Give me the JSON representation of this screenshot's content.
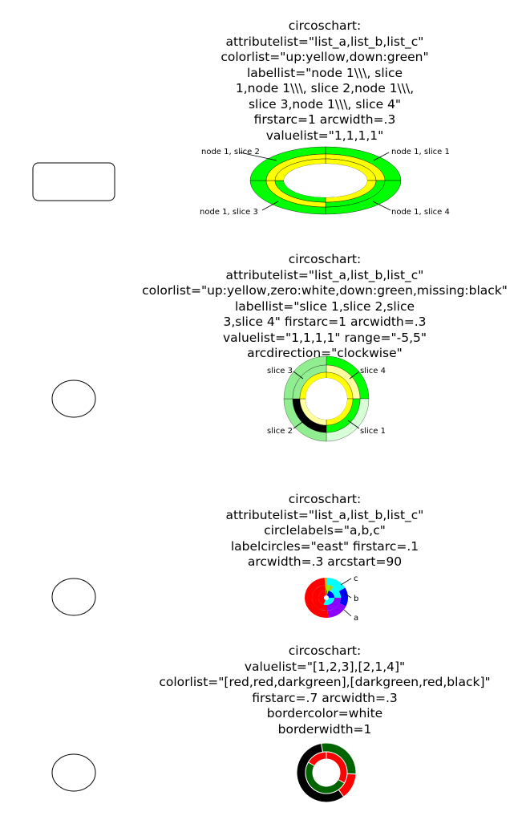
{
  "captions": [
    [
      "circoschart:",
      "attributelist=\"list_a,list_b,list_c\"",
      "colorlist=\"up:yellow,down:green\"",
      "labellist=\"node 1\\\\\\, slice",
      "1,node 1\\\\\\, slice 2,node 1\\\\\\,",
      "slice 3,node 1\\\\\\, slice 4\"",
      "firstarc=1 arcwidth=.3",
      "valuelist=\"1,1,1,1\""
    ],
    [
      "circoschart:",
      "attributelist=\"list_a,list_b,list_c\"",
      "colorlist=\"up:yellow,zero:white,down:green,missing:black\"",
      "labellist=\"slice 1,slice 2,slice",
      "3,slice 4\" firstarc=1 arcwidth=.3",
      "valuelist=\"1,1,1,1\" range=\"-5,5\"",
      "arcdirection=\"clockwise\""
    ],
    [
      "circoschart:",
      "attributelist=\"list_a,list_b,list_c\"",
      "circlelabels=\"a,b,c\"",
      "labelcircles=\"east\" firstarc=.1",
      "arcwidth=.3 arcstart=90"
    ],
    [
      "circoschart:",
      "valuelist=\"[1,2,3],[2,1,4]\"",
      "colorlist=\"[red,red,darkgreen],[darkgreen,red,black]\"",
      "firstarc=.7 arcwidth=.3",
      "bordercolor=white",
      "borderwidth=1"
    ]
  ],
  "chart1": {
    "labels": [
      "node 1, slice 2",
      "node 1, slice 1",
      "node 1, slice 3",
      "node 1, slice 4"
    ]
  },
  "chart2": {
    "labels": [
      "slice 3",
      "slice 4",
      "slice 2",
      "slice 1"
    ]
  },
  "chart3": {
    "labels": [
      "c",
      "b",
      "a"
    ]
  },
  "colors": {
    "yellow": "#ffff00",
    "green": "#00ff00",
    "red": "#ff0000",
    "darkgreen": "#006400",
    "black": "#000000",
    "purple": "#8b00ff",
    "cyan": "#00ffff",
    "blue": "#0000ff"
  },
  "chart_data": [
    {
      "type": "pie",
      "title": "",
      "slices": [
        "node 1, slice 1",
        "node 1, slice 2",
        "node 1, slice 3",
        "node 1, slice 4"
      ],
      "values": [
        1,
        1,
        1,
        1
      ]
    },
    {
      "type": "pie",
      "title": "",
      "slices": [
        "slice 1",
        "slice 2",
        "slice 3",
        "slice 4"
      ],
      "values": [
        1,
        1,
        1,
        1
      ],
      "range": [
        -5,
        5
      ]
    },
    {
      "type": "pie",
      "title": "",
      "circles": [
        "a",
        "b",
        "c"
      ]
    },
    {
      "type": "pie",
      "title": "",
      "rings": [
        {
          "values": [
            1,
            2,
            3
          ],
          "colors": [
            "red",
            "red",
            "darkgreen"
          ]
        },
        {
          "values": [
            2,
            1,
            4
          ],
          "colors": [
            "darkgreen",
            "red",
            "black"
          ]
        }
      ]
    }
  ]
}
